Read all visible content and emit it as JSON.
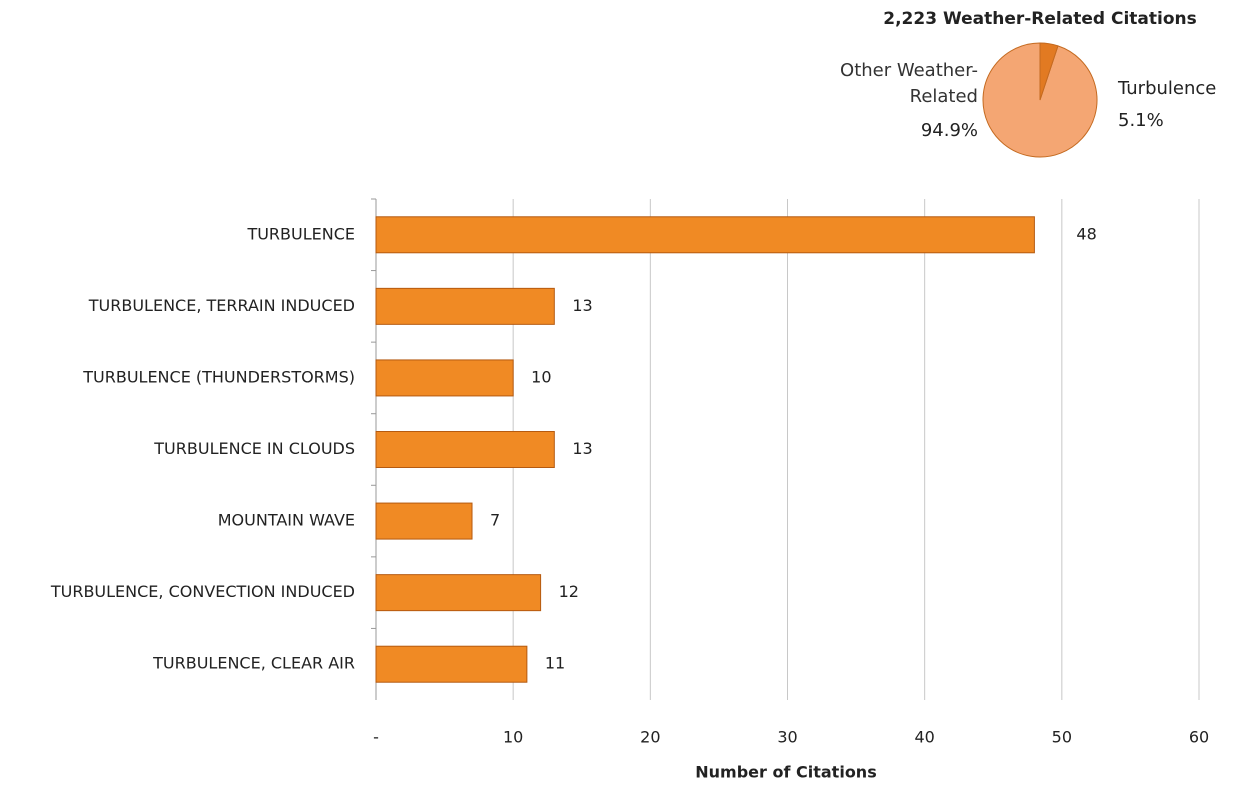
{
  "chart_data": [
    {
      "type": "barh",
      "categories": [
        "TURBULENCE",
        "TURBULENCE, TERRAIN INDUCED",
        "TURBULENCE (THUNDERSTORMS)",
        "TURBULENCE IN CLOUDS",
        "MOUNTAIN WAVE",
        "TURBULENCE, CONVECTION INDUCED",
        "TURBULENCE, CLEAR AIR"
      ],
      "values": [
        48,
        13,
        10,
        13,
        7,
        12,
        11
      ],
      "color": "#f08a24",
      "xlim": [
        0,
        60
      ],
      "xticks": [
        {
          "value": 0,
          "label": "-"
        },
        10,
        20,
        30,
        40,
        50,
        60
      ],
      "xlabel": "Number of Citations",
      "grid": true
    },
    {
      "type": "pie",
      "title": "2,223 Weather-Related Citations",
      "categories": [
        "Other Weather-Related",
        "Turbulence"
      ],
      "values": [
        94.9,
        5.1
      ],
      "value_labels": [
        "94.9%",
        "5.1%"
      ],
      "colors": [
        "#f4a673",
        "#e27a22"
      ]
    }
  ]
}
